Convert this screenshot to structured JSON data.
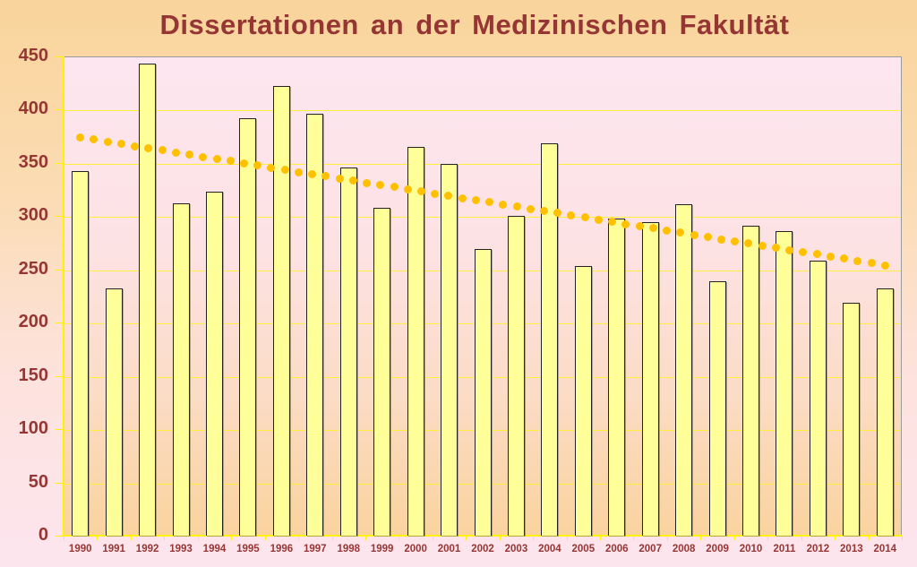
{
  "chart_data": {
    "type": "bar",
    "title": "Dissertationen an der Medizinischen Fakultät",
    "xlabel": "",
    "ylabel": "",
    "categories": [
      "1990",
      "1991",
      "1992",
      "1993",
      "1994",
      "1995",
      "1996",
      "1997",
      "1998",
      "1999",
      "2000",
      "2001",
      "2002",
      "2003",
      "2004",
      "2005",
      "2006",
      "2007",
      "2008",
      "2009",
      "2010",
      "2011",
      "2012",
      "2013",
      "2014"
    ],
    "series": [
      {
        "name": "Dissertationen",
        "values": [
          342,
          232,
          443,
          312,
          323,
          392,
          422,
          396,
          346,
          308,
          365,
          349,
          269,
          300,
          368,
          253,
          298,
          294,
          311,
          239,
          291,
          286,
          258,
          219,
          232
        ]
      }
    ],
    "trendline": {
      "type": "linear",
      "style": "dotted",
      "start": 374,
      "end": 254
    },
    "ylim": [
      0,
      450
    ],
    "yticks": [
      0,
      50,
      100,
      150,
      200,
      250,
      300,
      350,
      400,
      450
    ],
    "grid": true,
    "legend": "none"
  },
  "colors": {
    "bar_fill": "#FFFF99",
    "bar_border": "#222222",
    "trend": "#FFC000",
    "text": "#963634",
    "gridline": "#FFEF3A"
  }
}
